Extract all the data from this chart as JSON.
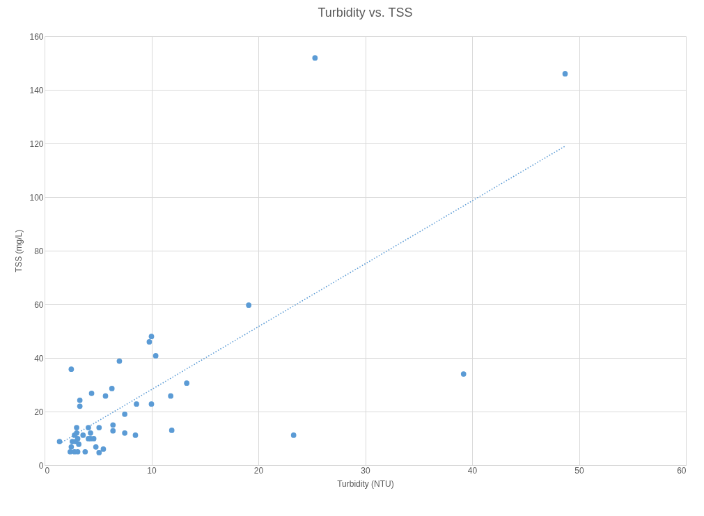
{
  "chart_data": {
    "type": "scatter",
    "title": "Turbidity vs. TSS",
    "xlabel": "Turbidity (NTU)",
    "ylabel": "TSS (mg/L)",
    "xlim": [
      0,
      60
    ],
    "xticks": [
      0,
      10,
      20,
      30,
      40,
      50,
      60
    ],
    "ylim": [
      0,
      160
    ],
    "yticks": [
      0,
      20,
      40,
      60,
      80,
      100,
      120,
      140,
      160
    ],
    "grid": true,
    "marker": "circle",
    "series": [
      {
        "color": "#5b9bd5",
        "x": [
          2.4,
          2.8,
          3.1,
          3.8,
          2.5,
          3.2,
          1.4,
          2.6,
          2.9,
          2.8,
          3.1,
          3.0,
          3.0,
          3.6,
          4.1,
          4.3,
          4.1,
          4.3,
          4.6,
          4.8,
          5.1,
          5.5,
          5.1,
          6.4,
          6.4,
          7.5,
          8.5,
          7.5,
          11.9,
          3.3,
          3.3,
          4.4,
          5.7,
          6.3,
          8.6,
          10.0,
          11.8,
          13.3,
          2.5,
          7.0,
          10.4,
          9.8,
          10.0,
          19.1,
          25.3,
          48.7,
          39.2,
          23.3
        ],
        "values": [
          5,
          5,
          5,
          5,
          6.8,
          7.8,
          8.8,
          8.8,
          8.8,
          11.2,
          9.9,
          12,
          14,
          11.2,
          14,
          12,
          9.9,
          9.9,
          9.9,
          6.8,
          4.7,
          6,
          14,
          15,
          12.8,
          12,
          11.2,
          19,
          13,
          22,
          24.2,
          26.8,
          25.8,
          28.6,
          22.8,
          22.8,
          25.8,
          30.6,
          35.8,
          38.8,
          40.8,
          46,
          48,
          59.7,
          151.9,
          146,
          34,
          11.2
        ]
      },
      {
        "type": "line",
        "color": "#5b9bd5",
        "line_style": "dotted",
        "marker": "none",
        "x": [
          1.4,
          48.7
        ],
        "values": [
          8,
          119
        ]
      }
    ]
  }
}
